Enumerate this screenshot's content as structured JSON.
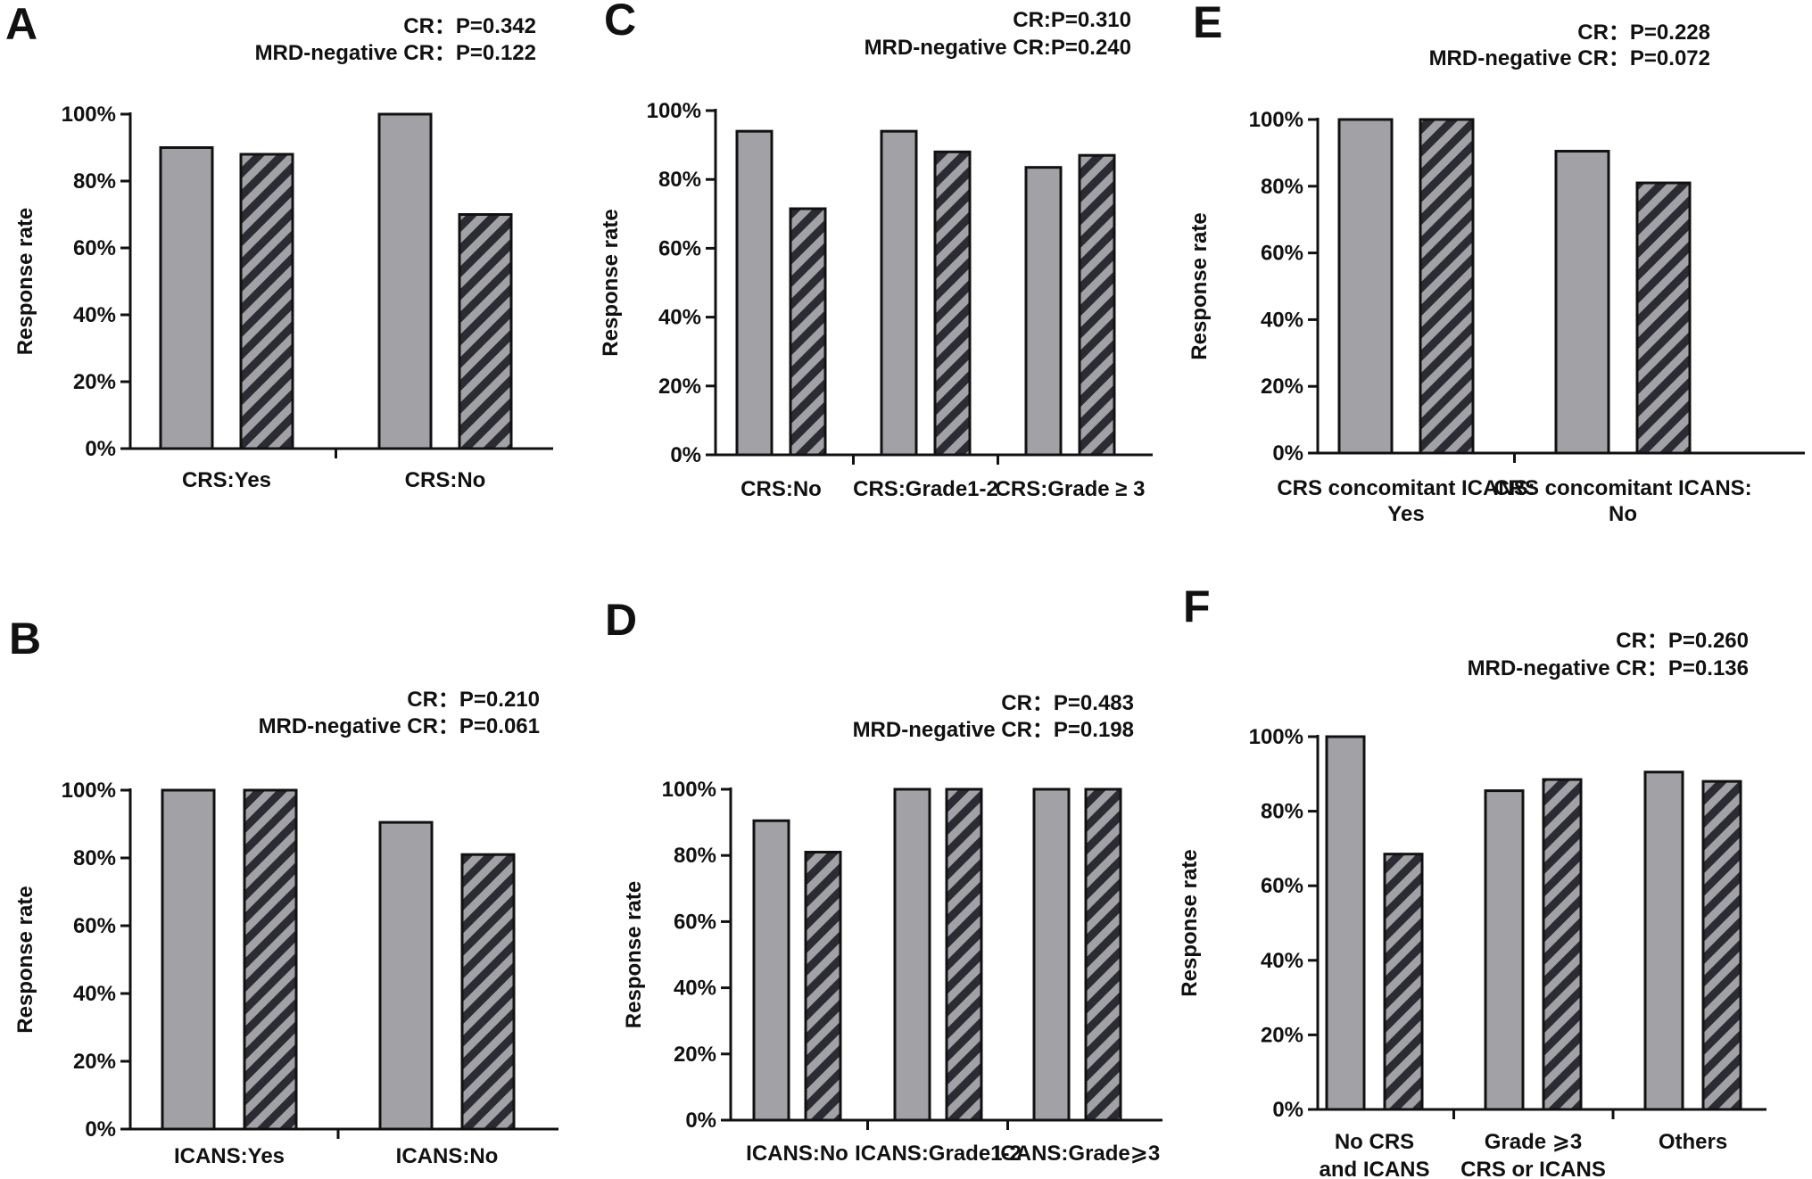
{
  "figure": {
    "series_names": [
      "CR",
      "MRD-negative CR"
    ],
    "colors": {
      "cr_fill": "#a2a1a6",
      "mrd_fill": "#a2a1a6",
      "mrd_stripe": "#2b2b33",
      "stroke": "#111111"
    }
  },
  "chart_data": [
    {
      "id": "A",
      "letter": "A",
      "type": "bar",
      "ylabel": "Response rate",
      "ylim": [
        0,
        100
      ],
      "yticks": [
        "0%",
        "20%",
        "40%",
        "60%",
        "80%",
        "100%"
      ],
      "pvalues": [
        "CR：P=0.342",
        "MRD-negative CR：P=0.122"
      ],
      "categories": [
        [
          "CRS:Yes"
        ],
        [
          "CRS:No"
        ]
      ],
      "series": [
        {
          "name": "CR",
          "values": [
            90,
            100
          ]
        },
        {
          "name": "MRD-negative CR",
          "values": [
            88,
            70
          ]
        }
      ]
    },
    {
      "id": "B",
      "letter": "B",
      "type": "bar",
      "ylabel": "Response rate",
      "ylim": [
        0,
        100
      ],
      "yticks": [
        "0%",
        "20%",
        "40%",
        "60%",
        "80%",
        "100%"
      ],
      "pvalues": [
        "CR：P=0.210",
        "MRD-negative CR：P=0.061"
      ],
      "categories": [
        [
          "ICANS:Yes"
        ],
        [
          "ICANS:No"
        ]
      ],
      "series": [
        {
          "name": "CR",
          "values": [
            100,
            90.5
          ]
        },
        {
          "name": "MRD-negative CR",
          "values": [
            100,
            81
          ]
        }
      ]
    },
    {
      "id": "C",
      "letter": "C",
      "type": "bar",
      "ylabel": "Response rate",
      "ylim": [
        0,
        100
      ],
      "yticks": [
        "0%",
        "20%",
        "40%",
        "60%",
        "80%",
        "100%"
      ],
      "pvalues": [
        "CR:P=0.310",
        "MRD-negative CR:P=0.240"
      ],
      "categories": [
        [
          "CRS:No"
        ],
        [
          "CRS:Grade1-2"
        ],
        [
          "CRS:Grade ≥ 3"
        ]
      ],
      "series": [
        {
          "name": "CR",
          "values": [
            94,
            94,
            83.5
          ]
        },
        {
          "name": "MRD-negative CR",
          "values": [
            71.5,
            88,
            87
          ]
        }
      ]
    },
    {
      "id": "D",
      "letter": "D",
      "type": "bar",
      "ylabel": "Response rate",
      "ylim": [
        0,
        100
      ],
      "yticks": [
        "0%",
        "20%",
        "40%",
        "60%",
        "80%",
        "100%"
      ],
      "pvalues": [
        "CR：P=0.483",
        "MRD-negative CR：P=0.198"
      ],
      "categories": [
        [
          "ICANS:No"
        ],
        [
          "ICANS:Grade1-2"
        ],
        [
          "ICANS:Grade⩾3"
        ]
      ],
      "series": [
        {
          "name": "CR",
          "values": [
            90.5,
            100,
            100
          ]
        },
        {
          "name": "MRD-negative CR",
          "values": [
            81,
            100,
            100
          ]
        }
      ]
    },
    {
      "id": "E",
      "letter": "E",
      "type": "bar",
      "ylabel": "Response rate",
      "ylim": [
        0,
        100
      ],
      "yticks": [
        "0%",
        "20%",
        "40%",
        "60%",
        "80%",
        "100%"
      ],
      "pvalues": [
        "CR：P=0.228",
        "MRD-negative CR：P=0.072"
      ],
      "categories": [
        [
          "CRS concomitant ICANS:",
          "Yes"
        ],
        [
          "CRS concomitant ICANS:",
          "No"
        ]
      ],
      "series": [
        {
          "name": "CR",
          "values": [
            100,
            90.5
          ]
        },
        {
          "name": "MRD-negative CR",
          "values": [
            100,
            81
          ]
        }
      ]
    },
    {
      "id": "F",
      "letter": "F",
      "type": "bar",
      "ylabel": "Response rate",
      "ylim": [
        0,
        100
      ],
      "yticks": [
        "0%",
        "20%",
        "40%",
        "60%",
        "80%",
        "100%"
      ],
      "pvalues": [
        "CR：P=0.260",
        "MRD-negative CR：P=0.136"
      ],
      "categories": [
        [
          "No CRS",
          "and ICANS"
        ],
        [
          "Grade ⩾3",
          "CRS or ICANS"
        ],
        [
          "Others"
        ]
      ],
      "series": [
        {
          "name": "CR",
          "values": [
            100,
            85.5,
            90.5
          ]
        },
        {
          "name": "MRD-negative CR",
          "values": [
            68.5,
            88.5,
            88
          ]
        }
      ]
    }
  ]
}
